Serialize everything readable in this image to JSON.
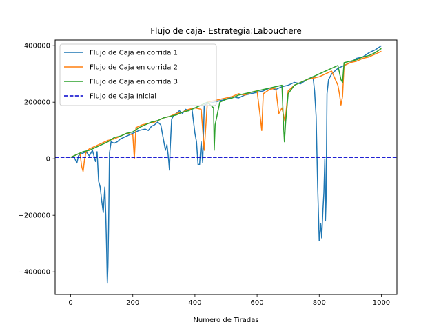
{
  "chart_data": {
    "type": "line",
    "title": "Flujo de caja- Estrategia:Labouchere",
    "xlabel": "Numero de Tiradas",
    "ylabel": "",
    "xlim": [
      -50,
      1050
    ],
    "ylim": [
      -480000,
      420000
    ],
    "xticks": [
      0,
      200,
      400,
      600,
      800,
      1000
    ],
    "yticks": [
      -400000,
      -200000,
      0,
      200000,
      400000
    ],
    "legend_position": "upper-left",
    "series": [
      {
        "name": "Flujo de Caja en corrida 1",
        "color": "#1f77b4",
        "style": "solid",
        "x": [
          0,
          10,
          20,
          25,
          30,
          40,
          50,
          60,
          70,
          80,
          85,
          90,
          95,
          100,
          105,
          110,
          113,
          116,
          118,
          120,
          122,
          125,
          130,
          140,
          150,
          160,
          170,
          180,
          190,
          200,
          220,
          240,
          250,
          260,
          270,
          280,
          290,
          300,
          305,
          310,
          315,
          318,
          320,
          325,
          330,
          340,
          350,
          360,
          370,
          380,
          390,
          400,
          405,
          410,
          415,
          420,
          425,
          430,
          440,
          460,
          480,
          500,
          520,
          540,
          560,
          580,
          600,
          620,
          640,
          660,
          680,
          700,
          720,
          740,
          760,
          770,
          780,
          785,
          790,
          795,
          800,
          805,
          808,
          812,
          815,
          818,
          820,
          822,
          825,
          830,
          840,
          860,
          880,
          900,
          920,
          940,
          960,
          980,
          1000
        ],
        "y": [
          5000,
          8000,
          -15000,
          10000,
          15000,
          20000,
          25000,
          10000,
          30000,
          -10000,
          25000,
          -80000,
          -100000,
          -150000,
          -190000,
          -100000,
          -200000,
          -330000,
          -440000,
          -380000,
          -250000,
          20000,
          60000,
          55000,
          60000,
          70000,
          75000,
          80000,
          85000,
          90000,
          100000,
          105000,
          100000,
          115000,
          120000,
          130000,
          120000,
          60000,
          30000,
          50000,
          0,
          -40000,
          30000,
          140000,
          150000,
          160000,
          170000,
          160000,
          175000,
          170000,
          180000,
          90000,
          60000,
          -20000,
          -20000,
          60000,
          -15000,
          190000,
          195000,
          200000,
          205000,
          210000,
          220000,
          215000,
          225000,
          230000,
          235000,
          240000,
          250000,
          245000,
          255000,
          260000,
          270000,
          265000,
          280000,
          285000,
          290000,
          240000,
          150000,
          -100000,
          -290000,
          -230000,
          -280000,
          -180000,
          -120000,
          0,
          -220000,
          -150000,
          230000,
          280000,
          300000,
          320000,
          330000,
          340000,
          355000,
          360000,
          375000,
          385000,
          400000
        ]
      },
      {
        "name": "Flujo de Caja en corrida 2",
        "color": "#ff7f0e",
        "style": "solid",
        "x": [
          0,
          10,
          20,
          30,
          35,
          40,
          45,
          50,
          60,
          80,
          100,
          120,
          140,
          160,
          180,
          200,
          205,
          210,
          230,
          250,
          270,
          290,
          300,
          320,
          340,
          360,
          380,
          400,
          420,
          430,
          440,
          460,
          480,
          500,
          520,
          540,
          560,
          580,
          600,
          610,
          615,
          620,
          640,
          660,
          670,
          680,
          690,
          700,
          720,
          740,
          760,
          780,
          800,
          820,
          840,
          860,
          865,
          870,
          875,
          880,
          900,
          920,
          940,
          960,
          980,
          1000
        ],
        "y": [
          5000,
          10000,
          15000,
          20000,
          -25000,
          -45000,
          0,
          25000,
          35000,
          45000,
          55000,
          65000,
          70000,
          80000,
          90000,
          85000,
          0,
          110000,
          120000,
          125000,
          130000,
          140000,
          145000,
          150000,
          160000,
          165000,
          175000,
          180000,
          175000,
          30000,
          200000,
          205000,
          210000,
          215000,
          220000,
          230000,
          225000,
          235000,
          240000,
          150000,
          100000,
          230000,
          245000,
          250000,
          160000,
          180000,
          130000,
          240000,
          260000,
          270000,
          280000,
          285000,
          290000,
          300000,
          310000,
          260000,
          230000,
          190000,
          220000,
          330000,
          340000,
          345000,
          355000,
          360000,
          370000,
          380000
        ]
      },
      {
        "name": "Flujo de Caja en corrida 3",
        "color": "#2ca02c",
        "style": "solid",
        "x": [
          0,
          20,
          40,
          60,
          80,
          100,
          120,
          140,
          160,
          180,
          200,
          220,
          240,
          260,
          280,
          300,
          320,
          340,
          360,
          380,
          400,
          420,
          440,
          460,
          462,
          465,
          480,
          500,
          520,
          540,
          560,
          580,
          600,
          620,
          640,
          660,
          680,
          685,
          688,
          692,
          700,
          720,
          740,
          760,
          780,
          800,
          820,
          840,
          860,
          870,
          875,
          880,
          900,
          920,
          940,
          960,
          980,
          1000
        ],
        "y": [
          5000,
          15000,
          25000,
          30000,
          40000,
          50000,
          60000,
          75000,
          80000,
          90000,
          95000,
          110000,
          120000,
          130000,
          135000,
          145000,
          150000,
          155000,
          165000,
          170000,
          180000,
          190000,
          200000,
          180000,
          30000,
          120000,
          200000,
          210000,
          215000,
          225000,
          230000,
          235000,
          240000,
          245000,
          250000,
          255000,
          260000,
          120000,
          60000,
          130000,
          230000,
          260000,
          270000,
          280000,
          290000,
          300000,
          310000,
          320000,
          330000,
          280000,
          270000,
          340000,
          345000,
          350000,
          360000,
          365000,
          375000,
          390000
        ]
      },
      {
        "name": "Flujo de Caja Inicial",
        "color": "#0000cc",
        "style": "dashed",
        "x": [
          -50,
          1050
        ],
        "y": [
          5000,
          5000
        ]
      }
    ]
  }
}
